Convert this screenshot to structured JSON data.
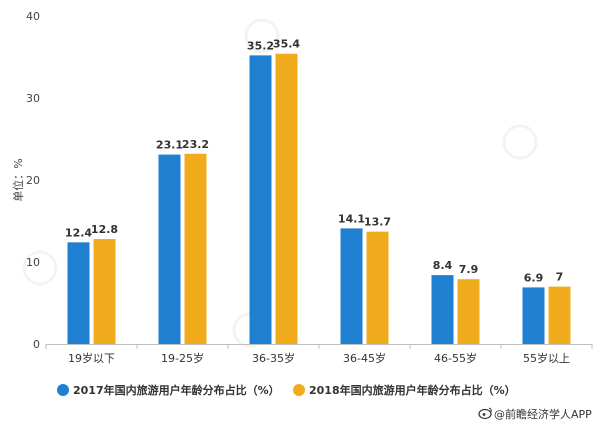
{
  "chart_data": {
    "type": "bar",
    "categories": [
      "19岁以下",
      "19-25岁",
      "36-35岁",
      "36-45岁",
      "46-55岁",
      "55岁以上"
    ],
    "series": [
      {
        "name": "2017年国内旅游用户年龄分布占比（%）",
        "values": [
          12.4,
          23.1,
          35.2,
          14.1,
          8.4,
          6.9
        ],
        "labels": [
          "12.4",
          "23.1",
          "35.2",
          "14.1",
          "8.4",
          "6.9"
        ],
        "color": "#1f7fd1"
      },
      {
        "name": "2018年国内旅游用户年龄分布占比（%）",
        "values": [
          12.8,
          23.2,
          35.4,
          13.7,
          7.9,
          7
        ],
        "labels": [
          "12.8",
          "23.2",
          "35.4",
          "13.7",
          "7.9",
          "7"
        ],
        "color": "#f0ac1c"
      }
    ],
    "yticks": [
      "0",
      "10",
      "20",
      "30",
      "40"
    ],
    "ylabel": "单位：%",
    "ylim": [
      0,
      40
    ],
    "grid": false,
    "legend_position": "bottom"
  },
  "source": {
    "icon": "weibo-icon",
    "text": "@前瞻经济学人APP"
  }
}
